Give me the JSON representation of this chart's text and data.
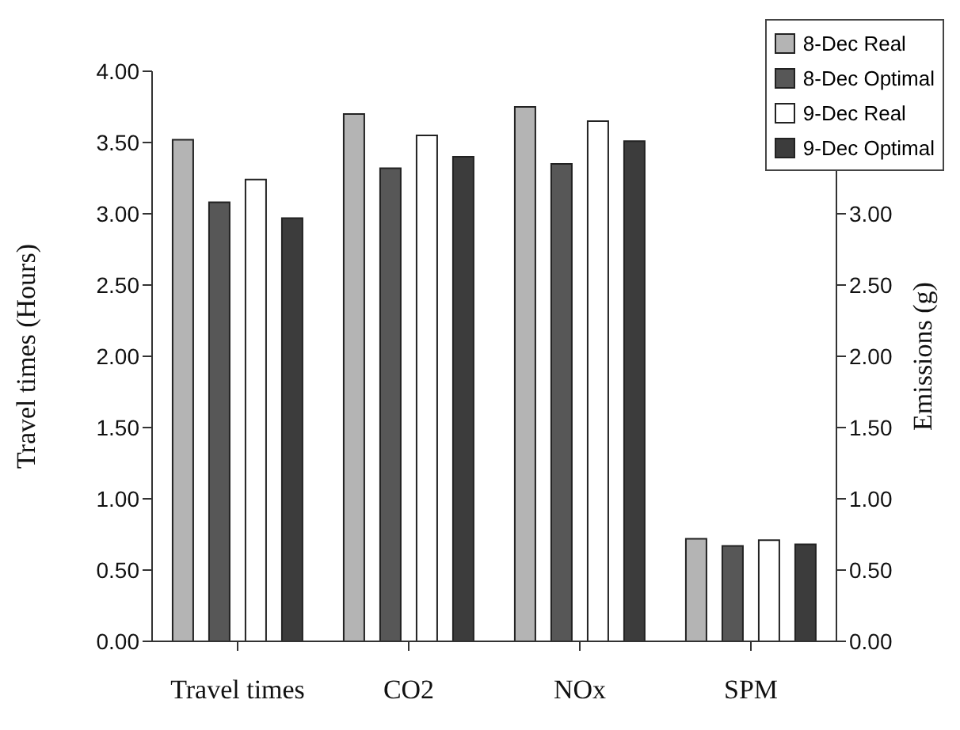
{
  "chart_data": {
    "type": "bar",
    "categories": [
      "Travel times",
      "CO2",
      "NOx",
      "SPM"
    ],
    "ylabel": "Travel times (Hours)",
    "y2label": "Emissions (g)",
    "series": [
      {
        "name": "8-Dec Real",
        "color": "#b4b4b4",
        "values": [
          3.52,
          3.7,
          3.75,
          0.72
        ]
      },
      {
        "name": "8-Dec Optimal",
        "color": "#575757",
        "values": [
          3.08,
          3.32,
          3.35,
          0.67
        ]
      },
      {
        "name": "9-Dec Real",
        "color": "#ffffff",
        "values": [
          3.24,
          3.55,
          3.65,
          0.71
        ]
      },
      {
        "name": "9-Dec Optimal",
        "color": "#3c3c3c",
        "values": [
          2.97,
          3.4,
          3.51,
          0.68
        ]
      }
    ],
    "ylim": [
      0,
      4
    ],
    "yticks": [
      {
        "value": 0,
        "label": "0.00"
      },
      {
        "value": 0.5,
        "label": "0.50"
      },
      {
        "value": 1,
        "label": "1.00"
      },
      {
        "value": 1.5,
        "label": "1.50"
      },
      {
        "value": 2,
        "label": "2.00"
      },
      {
        "value": 2.5,
        "label": "2.50"
      },
      {
        "value": 3,
        "label": "3.00"
      },
      {
        "value": 3.5,
        "label": "3.50"
      },
      {
        "value": 4,
        "label": "4.00"
      }
    ],
    "y2lim": [
      0,
      4
    ],
    "y2ticks": [
      {
        "value": 0,
        "label": "0.00"
      },
      {
        "value": 0.5,
        "label": "0.50"
      },
      {
        "value": 1,
        "label": "1.00"
      },
      {
        "value": 1.5,
        "label": "1.50"
      },
      {
        "value": 2,
        "label": "2.00"
      },
      {
        "value": 2.5,
        "label": "2.50"
      },
      {
        "value": 3,
        "label": "3.00"
      }
    ],
    "legend": "top right"
  }
}
